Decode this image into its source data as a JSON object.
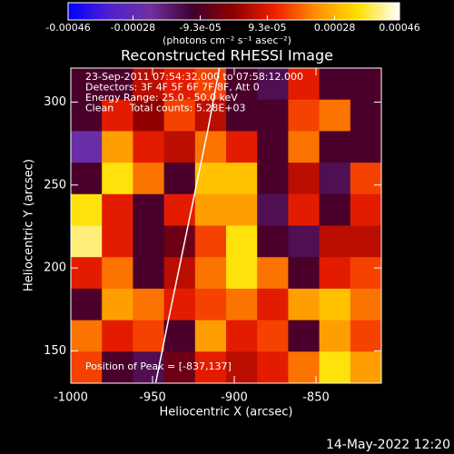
{
  "chart_data": {
    "type": "heatmap",
    "title": "Reconstructed RHESSI Image",
    "xlabel": "Heliocentric X (arcsec)",
    "ylabel": "Heliocentric Y (arcsec)",
    "annotations": [
      "23-Sep-2011 07:54:32.000 to 07:58:12.000",
      "Detectors: 3F 4F 5F 6F 7F 8F, Att 0",
      "Energy Range: 25.0 - 50.0 keV",
      "Clean     Total counts: 5.28E+03"
    ],
    "peak_label": "Position of Peak = [-837,137]",
    "footer": "14-May-2022 12:20",
    "xlim": [
      -1000,
      -810
    ],
    "ylim": [
      130.5,
      320.5
    ],
    "xticks": [
      -1000,
      -950,
      -900,
      -850
    ],
    "yticks": [
      150,
      200,
      250,
      300
    ],
    "x": [
      -990.5,
      -971.5,
      -952.5,
      -933.5,
      -914.5,
      -895.5,
      -876.5,
      -857.5,
      -838.5,
      -819.5
    ],
    "y": [
      311,
      292,
      273,
      254,
      235,
      216,
      197,
      178,
      159,
      140
    ],
    "z": [
      [
        -0.0001,
        -0.0001,
        5e-05,
        0.0001,
        0.00015,
        -0.0001,
        -0.00015,
        0.0001,
        -0.0001,
        -0.0001
      ],
      [
        -0.0001,
        0.0001,
        0,
        0.00015,
        5e-05,
        -0.0001,
        -0.0001,
        0.00015,
        0.0002,
        -0.0001
      ],
      [
        -0.00025,
        0.00025,
        0.0001,
        5e-05,
        0.0002,
        0.0001,
        -0.0001,
        0.0002,
        -0.0001,
        -0.0001
      ],
      [
        -0.0001,
        0.00035,
        0.0002,
        -0.0001,
        0.0003,
        0.0003,
        -0.0001,
        5e-05,
        -0.00015,
        0.00015
      ],
      [
        0.00035,
        0.0001,
        -0.0001,
        0.0001,
        0.00025,
        0.00025,
        -0.00015,
        0.0001,
        -0.0001,
        0.0001
      ],
      [
        0.0004,
        0.0001,
        -0.0001,
        -5e-05,
        0.00015,
        0.00035,
        -0.0001,
        -0.00015,
        5e-05,
        5e-05
      ],
      [
        0.0001,
        0.0002,
        -0.0001,
        5e-05,
        0.0002,
        0.00035,
        0.0002,
        -0.0001,
        0.0001,
        0.00015
      ],
      [
        -0.0001,
        0.00025,
        0.0002,
        0.0001,
        0.00015,
        0.0002,
        0.0001,
        0.00025,
        0.0003,
        0.0002
      ],
      [
        0.0002,
        0.0001,
        0.00015,
        -0.0001,
        0.00025,
        0.0001,
        0.00015,
        -0.0001,
        0.00025,
        0.00015
      ],
      [
        0.00015,
        -0.0001,
        -0.00015,
        -5e-05,
        0.0001,
        5e-05,
        0.0001,
        0.0002,
        0.00035,
        0.00025
      ]
    ],
    "limb": {
      "x": [
        -948,
        -940,
        -932,
        -924,
        -916,
        -909
      ],
      "y": [
        131,
        170,
        208,
        246,
        284,
        321
      ]
    },
    "limb_color": "#ffffff",
    "colorbar": {
      "label": "(photons cm⁻² s⁻¹ asec⁻²)",
      "lim": [
        -0.00046,
        0.00046
      ],
      "ticks": [
        -0.00046,
        -0.00028,
        {
          "value": -9.3e-05,
          "label": "-9.3e-05"
        },
        {
          "value": 9.3e-05,
          "label": "9.3e-05"
        },
        0.00028,
        0.00046
      ]
    },
    "colormap": [
      "#0000ff",
      "#5020d0",
      "#7030a0",
      "#400030",
      "#900000",
      "#f02000",
      "#ff9000",
      "#ffe000",
      "#ffffff"
    ]
  }
}
